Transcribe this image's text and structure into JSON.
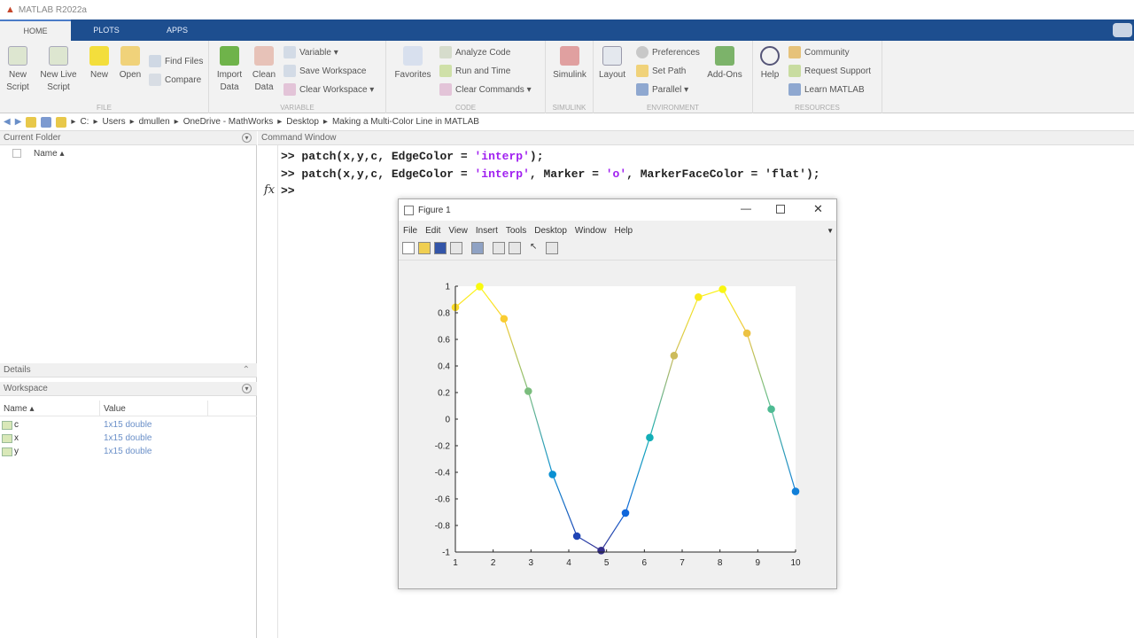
{
  "app": {
    "title": "MATLAB R2022a"
  },
  "tabs": [
    "HOME",
    "PLOTS",
    "APPS"
  ],
  "toolstrip": {
    "file": {
      "label": "FILE",
      "new_script": "New Script",
      "new_live_script": "New Live Script",
      "new": "New",
      "open": "Open",
      "find_files": "Find Files",
      "compare": "Compare"
    },
    "variable": {
      "label": "VARIABLE",
      "import_data": "Import Data",
      "clean_data": "Clean Data",
      "variable": "Variable ▾",
      "save_workspace": "Save Workspace",
      "clear_workspace": "Clear Workspace ▾"
    },
    "code": {
      "label": "CODE",
      "favorites": "Favorites",
      "analyze_code": "Analyze Code",
      "run_and_time": "Run and Time",
      "clear_commands": "Clear Commands ▾"
    },
    "simulink": {
      "label": "SIMULINK",
      "simulink": "Simulink"
    },
    "environment": {
      "label": "ENVIRONMENT",
      "layout": "Layout",
      "preferences": "Preferences",
      "set_path": "Set Path",
      "parallel": "Parallel ▾",
      "add_ons": "Add-Ons"
    },
    "resources": {
      "label": "RESOURCES",
      "help": "Help",
      "community": "Community",
      "request_support": "Request Support",
      "learn_matlab": "Learn MATLAB"
    }
  },
  "path": [
    "C:",
    "Users",
    "dmullen",
    "OneDrive - MathWorks",
    "Desktop",
    "Making a Multi-Color Line in MATLAB"
  ],
  "current_folder": {
    "title": "Current Folder",
    "column": "Name ▴"
  },
  "details": {
    "title": "Details"
  },
  "workspace": {
    "title": "Workspace",
    "columns": [
      "Name ▴",
      "Value"
    ],
    "rows": [
      {
        "name": "c",
        "value": "1x15 double"
      },
      {
        "name": "x",
        "value": "1x15 double"
      },
      {
        "name": "y",
        "value": "1x15 double"
      }
    ]
  },
  "command_window": {
    "title": "Command Window",
    "prompt": ">>",
    "fx": "fx",
    "lines": [
      {
        "pre": "patch(x,y,c, EdgeColor = ",
        "s1": "'interp'",
        "mid": ");",
        "s2": "",
        "post": ""
      },
      {
        "pre": "patch(x,y,c, EdgeColor = ",
        "s1": "'interp'",
        "mid": ", Marker = ",
        "s2": "'o'",
        "post": ", MarkerFaceColor = 'flat');"
      }
    ]
  },
  "figure": {
    "title": "Figure 1",
    "menu": [
      "File",
      "Edit",
      "View",
      "Insert",
      "Tools",
      "Desktop",
      "Window",
      "Help"
    ]
  },
  "chart_data": {
    "type": "line",
    "x": [
      1,
      1.643,
      2.286,
      2.929,
      3.571,
      4.214,
      4.857,
      5.5,
      6.143,
      6.786,
      7.429,
      8.071,
      8.714,
      9.357,
      10
    ],
    "y": [
      0.841,
      0.997,
      0.755,
      0.21,
      -0.416,
      -0.88,
      -0.989,
      -0.706,
      -0.139,
      0.478,
      0.918,
      0.977,
      0.646,
      0.075,
      -0.544
    ],
    "color_values": [
      0.841,
      0.997,
      0.755,
      0.21,
      -0.416,
      -0.88,
      -0.989,
      -0.706,
      -0.139,
      0.478,
      0.918,
      0.977,
      0.646,
      0.075,
      -0.544
    ],
    "colormap": "parula",
    "marker": "o",
    "xlim": [
      1,
      10
    ],
    "ylim": [
      -1,
      1
    ],
    "xticks": [
      "1",
      "2",
      "3",
      "4",
      "5",
      "6",
      "7",
      "8",
      "9",
      "10"
    ],
    "yticks": [
      "-1",
      "-0.8",
      "-0.6",
      "-0.4",
      "-0.2",
      "0",
      "0.2",
      "0.4",
      "0.6",
      "0.8",
      "1"
    ],
    "grid": false
  }
}
